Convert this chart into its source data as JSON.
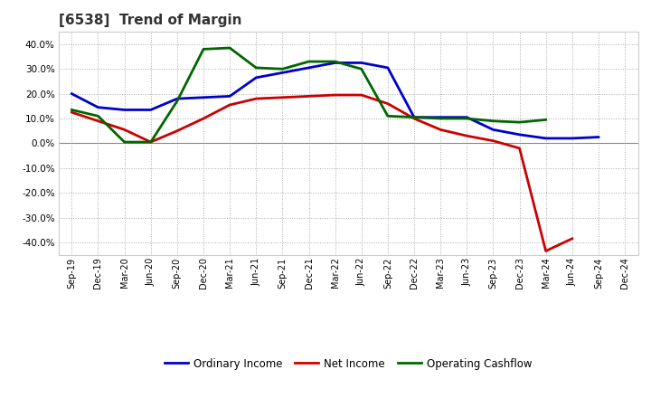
{
  "title": "[6538]  Trend of Margin",
  "x_labels": [
    "Sep-19",
    "Dec-19",
    "Mar-20",
    "Jun-20",
    "Sep-20",
    "Dec-20",
    "Mar-21",
    "Jun-21",
    "Sep-21",
    "Dec-21",
    "Mar-22",
    "Jun-22",
    "Sep-22",
    "Dec-22",
    "Mar-23",
    "Jun-23",
    "Sep-23",
    "Dec-23",
    "Mar-24",
    "Jun-24",
    "Sep-24",
    "Dec-24"
  ],
  "ordinary_income": [
    20.0,
    14.5,
    13.5,
    13.5,
    18.0,
    18.5,
    19.0,
    26.5,
    28.5,
    30.5,
    32.5,
    32.5,
    30.5,
    10.5,
    10.5,
    10.5,
    5.5,
    3.5,
    2.0,
    2.0,
    2.5,
    null
  ],
  "net_income": [
    12.5,
    9.0,
    5.5,
    0.5,
    5.0,
    10.0,
    15.5,
    18.0,
    18.5,
    19.0,
    19.5,
    19.5,
    16.0,
    10.0,
    5.5,
    3.0,
    1.0,
    -2.0,
    -43.5,
    -38.5,
    null,
    null
  ],
  "operating_cashflow": [
    13.5,
    11.0,
    0.5,
    0.5,
    17.0,
    38.0,
    38.5,
    30.5,
    30.0,
    33.0,
    33.0,
    30.0,
    11.0,
    10.5,
    10.0,
    10.0,
    9.0,
    8.5,
    9.5,
    null,
    null,
    null
  ],
  "ylim": [
    -45,
    45
  ],
  "yticks": [
    -40,
    -30,
    -20,
    -10,
    0,
    10,
    20,
    30,
    40
  ],
  "line_colors": {
    "ordinary_income": "#0000cc",
    "net_income": "#cc0000",
    "operating_cashflow": "#006600"
  },
  "line_width": 2.0,
  "background_color": "#ffffff",
  "plot_bg_color": "#ffffff",
  "grid_color": "#aaaaaa",
  "title_color": "#333333",
  "legend_labels": [
    "Ordinary Income",
    "Net Income",
    "Operating Cashflow"
  ]
}
